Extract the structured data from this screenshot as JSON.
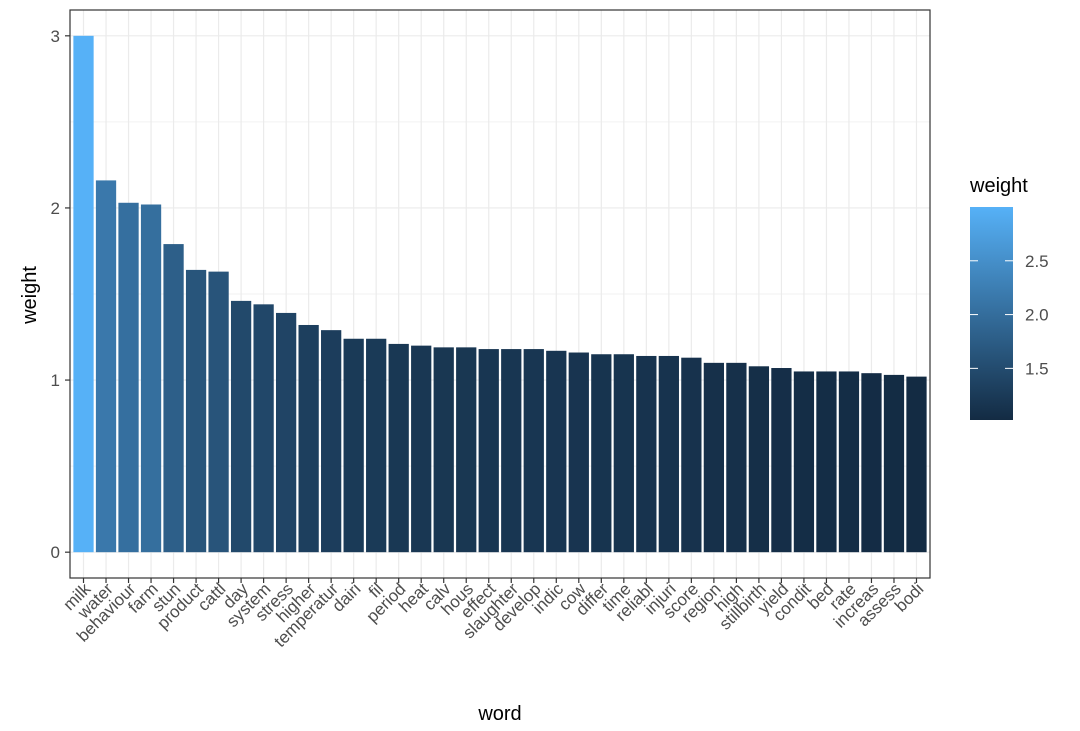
{
  "chart_data": {
    "type": "bar",
    "x_label": "word",
    "y_label": "weight",
    "categories": [
      "milk",
      "water",
      "behaviour",
      "farm",
      "stun",
      "product",
      "cattl",
      "day",
      "system",
      "stress",
      "higher",
      "temperatur",
      "dairi",
      "fil",
      "period",
      "heat",
      "calv",
      "hous",
      "effect",
      "slaughter",
      "develop",
      "indic",
      "cow",
      "differ",
      "time",
      "reliabl",
      "injuri",
      "score",
      "region",
      "high",
      "stillbirth",
      "yield",
      "condit",
      "bed",
      "rate",
      "increas",
      "assess",
      "bodi"
    ],
    "values": [
      3.0,
      2.16,
      2.03,
      2.02,
      1.79,
      1.64,
      1.63,
      1.46,
      1.44,
      1.39,
      1.32,
      1.29,
      1.24,
      1.24,
      1.21,
      1.2,
      1.19,
      1.19,
      1.18,
      1.18,
      1.18,
      1.17,
      1.16,
      1.15,
      1.15,
      1.14,
      1.14,
      1.13,
      1.1,
      1.1,
      1.08,
      1.07,
      1.05,
      1.05,
      1.05,
      1.04,
      1.03,
      1.02
    ],
    "ylim": [
      -0.15,
      3.15
    ],
    "yticks": [
      0,
      1,
      2,
      3
    ],
    "y_minor_ticks": [
      0.5,
      1.5,
      2.5
    ],
    "grid": true,
    "legend": {
      "title": "weight",
      "low_color": "#132B43",
      "high_color": "#56B1F7",
      "ticks": [
        1.5,
        {
          "value": 2,
          "label": "2.0"
        },
        2.5
      ]
    }
  }
}
